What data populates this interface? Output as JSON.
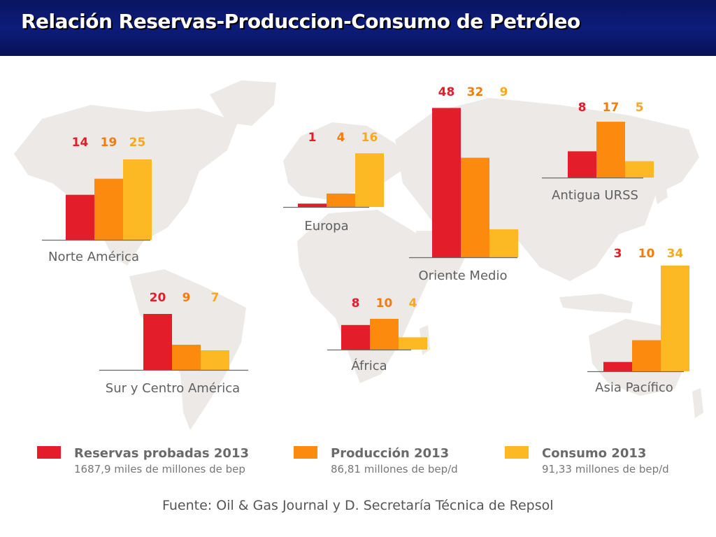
{
  "title": "Relación Reservas-Produccion-Consumo de Petróleo",
  "source": "Fuente: Oil & Gas Journal y D. Secretaría Técnica de Repsol",
  "colors": {
    "reservas": "#e41d2a",
    "produccion": "#fb8a0f",
    "consumo": "#fdb924",
    "value_reservas": "#e41d2a",
    "value_produccion": "#f47c0a",
    "value_consumo": "#f7a81e",
    "map": "#ece9e6",
    "title_bg": "#0c1c7a"
  },
  "chart_data": {
    "type": "bar",
    "unit": "%",
    "series": [
      {
        "key": "reservas",
        "name": "Reservas probadas 2013",
        "total": "1687,9 miles de millones de bep"
      },
      {
        "key": "produccion",
        "name": "Producción 2013",
        "total": "86,81 millones de bep/d"
      },
      {
        "key": "consumo",
        "name": "Consumo 2013",
        "total": "91,33 millones de bep/d"
      }
    ],
    "regions": [
      {
        "name": "Norte América",
        "values": [
          14,
          19,
          25
        ]
      },
      {
        "name": "Europa",
        "values": [
          1,
          4,
          16
        ]
      },
      {
        "name": "Oriente Medio",
        "values": [
          48,
          32,
          9
        ]
      },
      {
        "name": "Antigua URSS",
        "values": [
          8,
          17,
          5
        ]
      },
      {
        "name": "Sur y Centro América",
        "values": [
          20,
          9,
          7
        ]
      },
      {
        "name": "África",
        "values": [
          8,
          10,
          4
        ]
      },
      {
        "name": "Asia Pacífico",
        "values": [
          3,
          10,
          34
        ]
      }
    ]
  }
}
